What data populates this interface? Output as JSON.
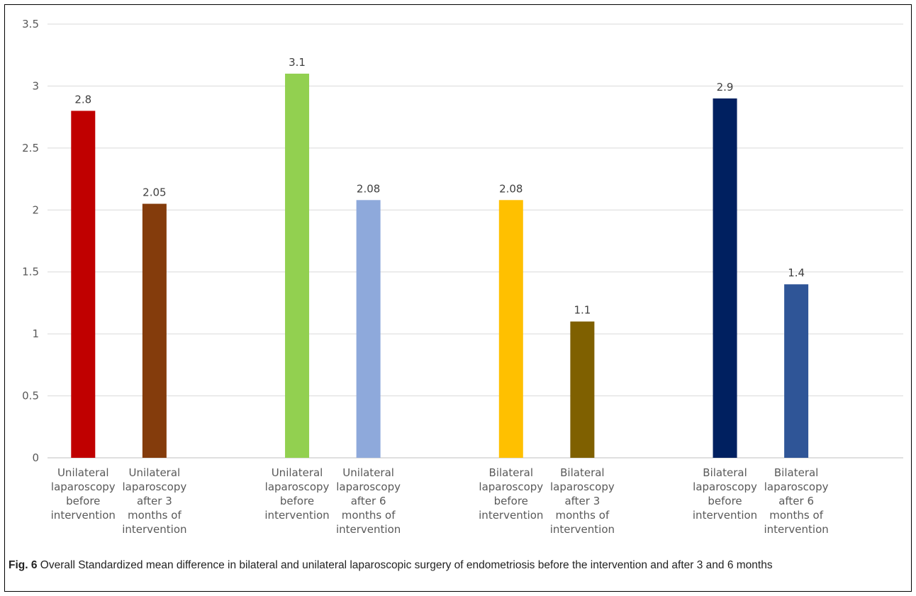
{
  "chart_data": {
    "type": "bar",
    "ylim": [
      0,
      3.5
    ],
    "y_ticks": [
      "0",
      "0.5",
      "1",
      "1.5",
      "2",
      "2.5",
      "3",
      "3.5"
    ],
    "grid": true,
    "legend": "none",
    "categories": [
      "Unilateral laparoscopy before intervention",
      "Unilateral laparoscopy after 3 months of intervention",
      "Unilateral laparoscopy before intervention",
      "Unilateral laparoscopy after 6 months of intervention",
      "Bilateral laparoscopy before intervention",
      "Bilateral laparoscopy after 3 months of intervention",
      "Bilateral laparoscopy before intervention",
      "Bilateral laparoscopy after 6 months of intervention"
    ],
    "values": [
      2.8,
      2.05,
      3.1,
      2.08,
      2.08,
      1.1,
      2.9,
      1.4
    ],
    "data_labels": [
      "2.8",
      "2.05",
      "3.1",
      "2.08",
      "2.08",
      "1.1",
      "2.9",
      "1.4"
    ],
    "colors": [
      "#C00000",
      "#843C0C",
      "#92D050",
      "#8EA9DB",
      "#FFC000",
      "#7F6000",
      "#002060",
      "#2F5597"
    ]
  },
  "caption": {
    "label": "Fig. 6",
    "text": "Overall Standardized mean difference in bilateral and unilateral laparoscopic surgery of endometriosis before the intervention and after 3 and 6 months"
  }
}
